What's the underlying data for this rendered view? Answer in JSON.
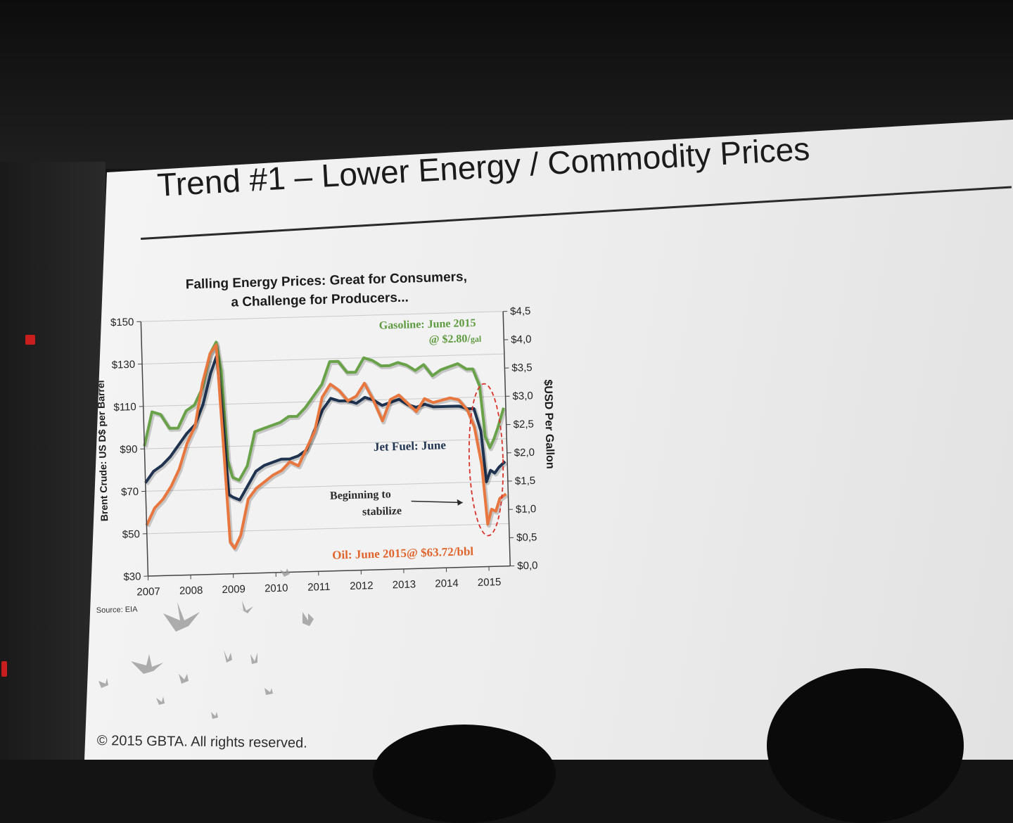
{
  "slide": {
    "title": "Trend #1 – Lower Energy / Commodity Prices",
    "copyright": "© 2015 GBTA. All rights reserved."
  },
  "chart_data": {
    "type": "line",
    "title_line1": "Falling Energy Prices: Great for Consumers,",
    "title_line2": "a Challenge for Producers...",
    "ylabel_left": "Brent Crude: US D$ per Barrel",
    "ylabel_right": "$USD Per Gallon",
    "source": "Source: EIA",
    "left_axis": {
      "min": 30,
      "max": 150,
      "ticks": [
        "$150",
        "$130",
        "$110",
        "$90",
        "$70",
        "$50",
        "$30"
      ],
      "tick_values": [
        150,
        130,
        110,
        90,
        70,
        50,
        30
      ]
    },
    "right_axis": {
      "min": 0,
      "max": 4.5,
      "ticks": [
        "$4,5",
        "$4,0",
        "$3,5",
        "$3,0",
        "$2,5",
        "$2,0",
        "$1,5",
        "$1,0",
        "$0,5",
        "$0,0"
      ],
      "tick_values": [
        4.5,
        4.0,
        3.5,
        3.0,
        2.5,
        2.0,
        1.5,
        1.0,
        0.5,
        0.0
      ]
    },
    "xlim": [
      2007,
      2015.5
    ],
    "x_ticks": [
      "2007",
      "2008",
      "2009",
      "2010",
      "2011",
      "2012",
      "2013",
      "2014",
      "2015"
    ],
    "x_tick_values": [
      2007,
      2008,
      2009,
      2010,
      2011,
      2012,
      2013,
      2014,
      2015
    ],
    "grid": true,
    "series": [
      {
        "name": "Gasoline",
        "axis": "right",
        "color": "#6aa24a",
        "x": [
          2007,
          2007.2,
          2007.4,
          2007.6,
          2007.8,
          2008,
          2008.2,
          2008.4,
          2008.6,
          2008.75,
          2008.85,
          2008.95,
          2009.05,
          2009.2,
          2009.4,
          2009.6,
          2009.8,
          2010,
          2010.2,
          2010.4,
          2010.6,
          2010.8,
          2011,
          2011.2,
          2011.4,
          2011.6,
          2011.8,
          2012,
          2012.2,
          2012.4,
          2012.6,
          2012.8,
          2013,
          2013.2,
          2013.4,
          2013.6,
          2013.8,
          2014,
          2014.2,
          2014.4,
          2014.6,
          2014.75,
          2014.9,
          2015,
          2015.1,
          2015.2,
          2015.3,
          2015.45
        ],
        "values": [
          2.3,
          2.9,
          2.85,
          2.6,
          2.6,
          2.9,
          3.0,
          3.3,
          3.9,
          4.1,
          3.6,
          2.0,
          1.7,
          1.65,
          1.9,
          2.5,
          2.55,
          2.6,
          2.65,
          2.75,
          2.75,
          2.9,
          3.1,
          3.3,
          3.7,
          3.7,
          3.5,
          3.5,
          3.75,
          3.7,
          3.6,
          3.6,
          3.65,
          3.6,
          3.5,
          3.6,
          3.4,
          3.5,
          3.55,
          3.6,
          3.5,
          3.5,
          3.2,
          2.3,
          2.1,
          2.25,
          2.45,
          2.8
        ]
      },
      {
        "name": "Jet Fuel: June",
        "axis": "right",
        "color": "#1f3350",
        "x": [
          2007,
          2007.2,
          2007.4,
          2007.6,
          2007.8,
          2008,
          2008.2,
          2008.4,
          2008.6,
          2008.75,
          2008.85,
          2008.95,
          2009.05,
          2009.2,
          2009.4,
          2009.6,
          2009.8,
          2010,
          2010.2,
          2010.4,
          2010.6,
          2010.8,
          2011,
          2011.2,
          2011.4,
          2011.6,
          2011.8,
          2012,
          2012.2,
          2012.4,
          2012.6,
          2012.8,
          2013,
          2013.2,
          2013.4,
          2013.6,
          2013.8,
          2014,
          2014.2,
          2014.4,
          2014.6,
          2014.75,
          2014.9,
          2015,
          2015.1,
          2015.2,
          2015.3,
          2015.45
        ],
        "values": [
          1.65,
          1.85,
          1.95,
          2.1,
          2.3,
          2.5,
          2.65,
          3.0,
          3.55,
          3.85,
          2.8,
          1.4,
          1.35,
          1.3,
          1.55,
          1.8,
          1.9,
          1.95,
          2.0,
          2.0,
          2.05,
          2.15,
          2.5,
          2.85,
          3.05,
          3.0,
          3.0,
          2.95,
          3.05,
          3.0,
          2.9,
          2.95,
          3.0,
          2.9,
          2.85,
          2.9,
          2.85,
          2.85,
          2.85,
          2.85,
          2.8,
          2.8,
          2.4,
          1.5,
          1.7,
          1.65,
          1.75,
          1.85
        ]
      },
      {
        "name": "Oil",
        "axis": "left",
        "color": "#e8773f",
        "x": [
          2007,
          2007.2,
          2007.4,
          2007.6,
          2007.8,
          2008,
          2008.2,
          2008.4,
          2008.6,
          2008.75,
          2008.85,
          2008.95,
          2009.05,
          2009.2,
          2009.4,
          2009.6,
          2009.8,
          2010,
          2010.2,
          2010.4,
          2010.6,
          2010.8,
          2011,
          2011.2,
          2011.4,
          2011.6,
          2011.8,
          2012,
          2012.2,
          2012.4,
          2012.6,
          2012.8,
          2013,
          2013.2,
          2013.4,
          2013.6,
          2013.8,
          2014,
          2014.2,
          2014.4,
          2014.6,
          2014.75,
          2014.9,
          2015,
          2015.1,
          2015.2,
          2015.3,
          2015.45
        ],
        "values": [
          54,
          62,
          66,
          72,
          80,
          92,
          100,
          120,
          134,
          138,
          92,
          45,
          42,
          48,
          65,
          70,
          73,
          76,
          78,
          82,
          80,
          88,
          96,
          112,
          118,
          115,
          110,
          112,
          118,
          110,
          100,
          110,
          112,
          108,
          104,
          110,
          108,
          109,
          110,
          109,
          104,
          96,
          78,
          50,
          57,
          56,
          62,
          64
        ]
      }
    ],
    "annotations": {
      "gasoline_line1": "Gasoline: June 2015",
      "gasoline_line2": "@ $2.80/",
      "gasoline_unit": "gal",
      "jet_fuel": "Jet Fuel: June",
      "beginning_line1": "Beginning to",
      "beginning_line2": "stabilize",
      "oil": "Oil: June 2015@ $63.72/bbl"
    },
    "highlight": {
      "shape": "dashed-ellipse",
      "color": "#d9342b"
    }
  }
}
